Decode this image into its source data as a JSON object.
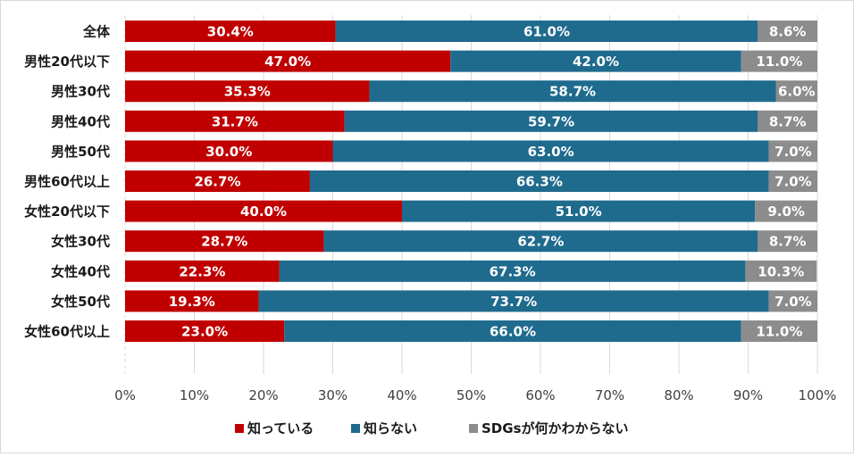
{
  "chart_data": {
    "type": "bar",
    "orientation": "horizontal",
    "stacked": "100%",
    "categories": [
      "全体",
      "男性20代以下",
      "男性30代",
      "男性40代",
      "男性50代",
      "男性60代以上",
      "女性20代以下",
      "女性30代",
      "女性40代",
      "女性50代",
      "女性60代以上"
    ],
    "series": [
      {
        "name": "知っている",
        "color": "#c00000",
        "values": [
          30.4,
          47.0,
          35.3,
          31.7,
          30.0,
          26.7,
          40.0,
          28.7,
          22.3,
          19.3,
          23.0
        ],
        "labels": [
          "30.4%",
          "47.0%",
          "35.3%",
          "31.7%",
          "30.0%",
          "26.7%",
          "40.0%",
          "28.7%",
          "22.3%",
          "19.3%",
          "23.0%"
        ]
      },
      {
        "name": "知らない",
        "color": "#1f6b8e",
        "values": [
          61.0,
          42.0,
          58.7,
          59.7,
          63.0,
          66.3,
          51.0,
          62.7,
          67.3,
          73.7,
          66.0
        ],
        "labels": [
          "61.0%",
          "42.0%",
          "58.7%",
          "59.7%",
          "63.0%",
          "66.3%",
          "51.0%",
          "62.7%",
          "67.3%",
          "73.7%",
          "66.0%"
        ]
      },
      {
        "name": "SDGsが何かわからない",
        "color": "#8c8c8c",
        "values": [
          8.6,
          11.0,
          6.0,
          8.7,
          7.0,
          7.0,
          9.0,
          8.7,
          10.3,
          7.0,
          11.0
        ],
        "labels": [
          "8.6%",
          "11.0%",
          "6.0%",
          "8.7%",
          "7.0%",
          "7.0%",
          "9.0%",
          "8.7%",
          "10.3%",
          "7.0%",
          "11.0%"
        ]
      }
    ],
    "x_ticks": [
      "0%",
      "10%",
      "20%",
      "30%",
      "40%",
      "50%",
      "60%",
      "70%",
      "80%",
      "90%",
      "100%"
    ],
    "xlim": [
      0,
      100
    ],
    "title": "",
    "xlabel": "",
    "ylabel": "",
    "grid": true,
    "legend": "bottom"
  }
}
